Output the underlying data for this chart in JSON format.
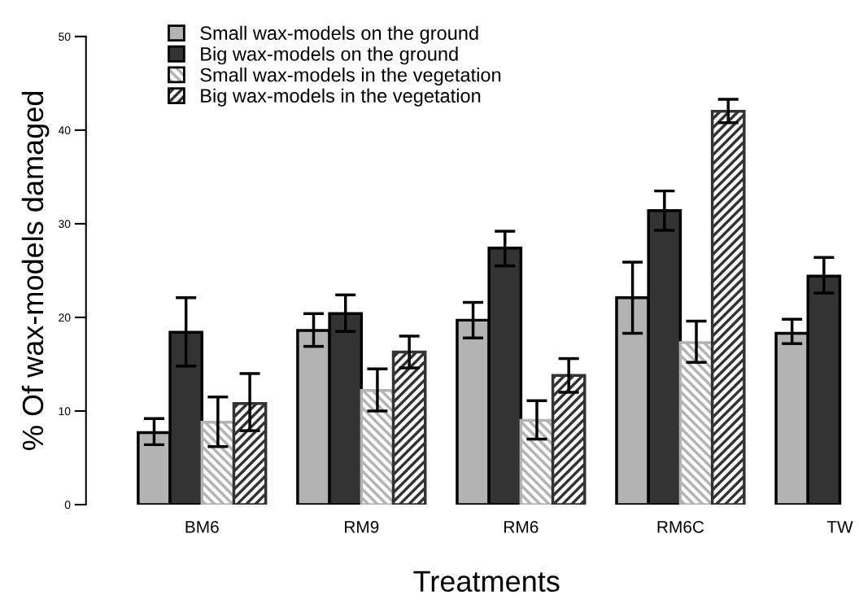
{
  "chart_data": {
    "type": "bar",
    "xlabel": "Treatments",
    "ylabel": "% Of wax-models damaged",
    "categories": [
      "BM6",
      "RM9",
      "RM6",
      "RM6C",
      "TW"
    ],
    "series": [
      {
        "name": "Small wax-models on the ground",
        "color": "#b3b3b3",
        "values": [
          7.7,
          18.6,
          19.7,
          22.1,
          18.3
        ],
        "errors": [
          [
            6.4,
            9.2
          ],
          [
            16.9,
            20.4
          ],
          [
            17.8,
            21.6
          ],
          [
            18.3,
            25.9
          ],
          [
            17.2,
            19.8
          ]
        ]
      },
      {
        "name": "Big wax-models on the ground",
        "color": "#333333",
        "values": [
          18.4,
          20.4,
          27.4,
          31.4,
          24.4
        ],
        "errors": [
          [
            14.8,
            22.1
          ],
          [
            18.5,
            22.4
          ],
          [
            25.5,
            29.2
          ],
          [
            29.3,
            33.5
          ],
          [
            22.6,
            26.4
          ]
        ]
      },
      {
        "name": "Small wax-models in the vegetation",
        "color": "#b3b3b3",
        "values": [
          8.8,
          12.2,
          9.0,
          17.3,
          null
        ],
        "errors": [
          [
            6.2,
            11.5
          ],
          [
            10.0,
            14.5
          ],
          [
            7.0,
            11.1
          ],
          [
            15.2,
            19.6
          ],
          null
        ]
      },
      {
        "name": "Big wax-models in the vegetation",
        "color": "#333333",
        "values": [
          10.8,
          16.3,
          13.8,
          42.0,
          null
        ],
        "errors": [
          [
            7.9,
            14.0
          ],
          [
            14.6,
            18.0
          ],
          [
            12.0,
            15.6
          ],
          [
            40.8,
            43.3
          ],
          null
        ]
      }
    ],
    "ylim": [
      0,
      50
    ],
    "yticks": [
      0,
      10,
      20,
      30,
      40,
      50
    ],
    "grid": false,
    "legend": "top left"
  }
}
